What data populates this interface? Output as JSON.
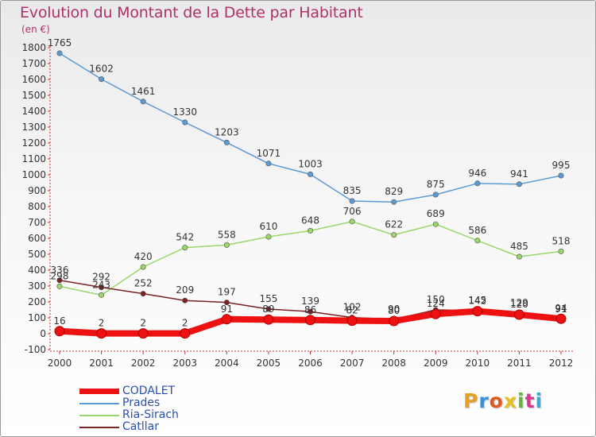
{
  "title": "Evolution du Montant de la Dette par Habitant",
  "unit_label": "(en €)",
  "logo_text": "Proxiti",
  "logo_colors": [
    "#e8a020",
    "#3a8fd8",
    "#e05a20",
    "#e8c020",
    "#5fb83a",
    "#d83a8f",
    "#3aa8d8"
  ],
  "chart_data": {
    "type": "line",
    "x": [
      "2000",
      "2001",
      "2002",
      "2003",
      "2004",
      "2005",
      "2006",
      "2007",
      "2008",
      "2009",
      "2010",
      "2011",
      "2012"
    ],
    "ylim": [
      -100,
      1800
    ],
    "yticks": [
      -100,
      0,
      100,
      200,
      300,
      400,
      500,
      600,
      700,
      800,
      900,
      1000,
      1100,
      1200,
      1300,
      1400,
      1500,
      1600,
      1700,
      1800
    ],
    "grid": false,
    "legend_position": "bottom-left",
    "series": [
      {
        "name": "CODALET",
        "color": "#ee1111",
        "values": [
          16,
          2,
          2,
          2,
          91,
          89,
          86,
          82,
          80,
          124,
          142,
          120,
          94
        ],
        "labels": [
          "16",
          "2",
          "2",
          "2",
          "91",
          "89",
          "86",
          "82",
          "80",
          "124",
          "142",
          "120",
          "94"
        ]
      },
      {
        "name": "Prades",
        "color": "#5b9bd5",
        "values": [
          1765,
          1602,
          1461,
          1330,
          1203,
          1071,
          1003,
          835,
          829,
          875,
          946,
          941,
          995
        ],
        "labels": [
          "1765",
          "1602",
          "1461",
          "1330",
          "1203",
          "1071",
          "1003",
          "835",
          "829",
          "875",
          "946",
          "941",
          "995"
        ]
      },
      {
        "name": "Ria-Sirach",
        "color": "#9ad66a",
        "values": [
          298,
          243,
          420,
          542,
          558,
          610,
          648,
          706,
          622,
          689,
          586,
          485,
          518
        ],
        "labels": [
          "298",
          "243",
          "420",
          "542",
          "558",
          "610",
          "648",
          "706",
          "622",
          "689",
          "586",
          "485",
          "518"
        ]
      },
      {
        "name": "Catllar",
        "color": "#7b2222",
        "values": [
          336,
          292,
          252,
          209,
          197,
          155,
          139,
          102,
          90,
          150,
          145,
          129,
          91
        ],
        "labels": [
          "336",
          "292",
          "252",
          "209",
          "197",
          "155",
          "139",
          "102",
          "90",
          "150",
          "145",
          "129",
          "91"
        ]
      }
    ]
  }
}
